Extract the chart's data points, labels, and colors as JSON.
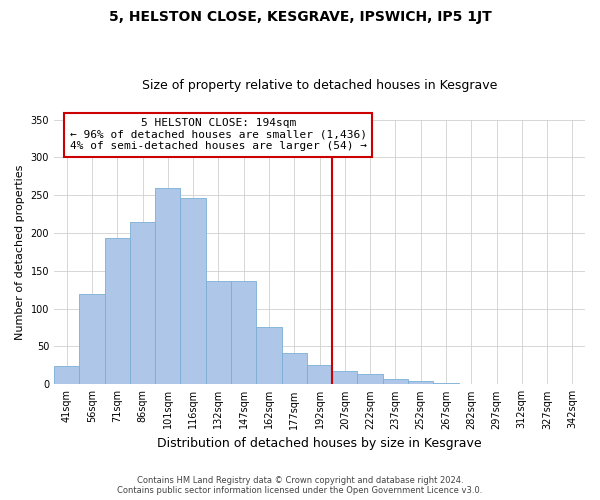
{
  "title": "5, HELSTON CLOSE, KESGRAVE, IPSWICH, IP5 1JT",
  "subtitle": "Size of property relative to detached houses in Kesgrave",
  "xlabel": "Distribution of detached houses by size in Kesgrave",
  "ylabel": "Number of detached properties",
  "bar_labels": [
    "41sqm",
    "56sqm",
    "71sqm",
    "86sqm",
    "101sqm",
    "116sqm",
    "132sqm",
    "147sqm",
    "162sqm",
    "177sqm",
    "192sqm",
    "207sqm",
    "222sqm",
    "237sqm",
    "252sqm",
    "267sqm",
    "282sqm",
    "297sqm",
    "312sqm",
    "327sqm",
    "342sqm"
  ],
  "bar_values": [
    24,
    120,
    193,
    215,
    260,
    246,
    137,
    136,
    76,
    41,
    25,
    18,
    13,
    7,
    5,
    2,
    1,
    1,
    0,
    0,
    1
  ],
  "bar_color": "#aec6e8",
  "bar_edge_color": "#7bafd4",
  "vline_x": 10.5,
  "vline_color": "#cc0000",
  "ylim": [
    0,
    350
  ],
  "yticks": [
    0,
    50,
    100,
    150,
    200,
    250,
    300,
    350
  ],
  "annotation_title": "5 HELSTON CLOSE: 194sqm",
  "annotation_line1": "← 96% of detached houses are smaller (1,436)",
  "annotation_line2": "4% of semi-detached houses are larger (54) →",
  "footer_line1": "Contains HM Land Registry data © Crown copyright and database right 2024.",
  "footer_line2": "Contains public sector information licensed under the Open Government Licence v3.0.",
  "title_fontsize": 10,
  "subtitle_fontsize": 9,
  "xlabel_fontsize": 9,
  "ylabel_fontsize": 8,
  "tick_fontsize": 7,
  "annotation_fontsize": 8,
  "footer_fontsize": 6
}
